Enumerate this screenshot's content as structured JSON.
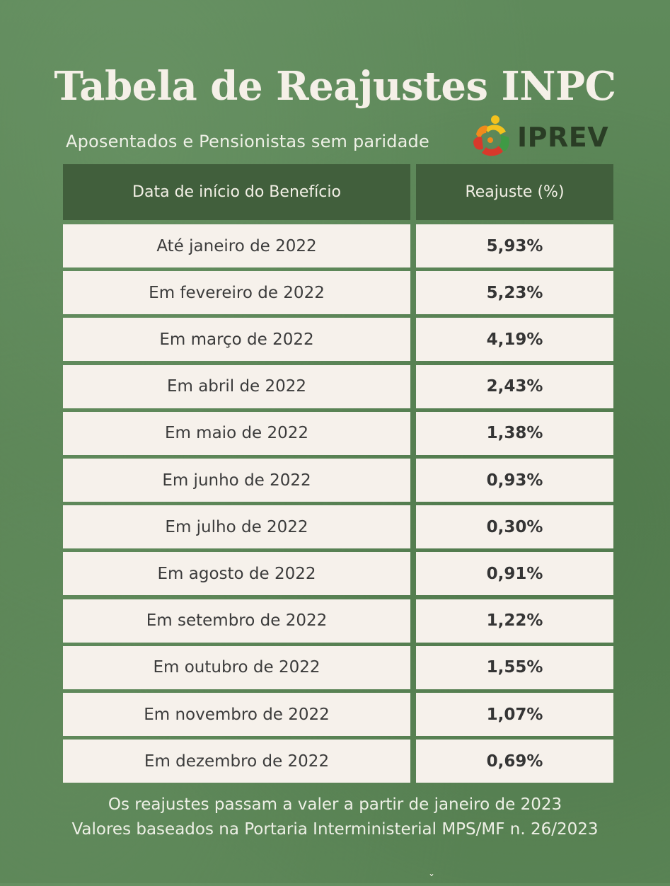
{
  "title": "Tabela de Reajustes INPC",
  "subtitle": "Aposentados e Pensionistas sem paridade",
  "logo": {
    "text": "IPREV",
    "icon": "iprev-logo-mark-icon",
    "colors": {
      "red": "#d8392b",
      "orange": "#f08a1c",
      "yellow": "#f4c21d",
      "green": "#3f9a45",
      "text": "#2a3d25"
    }
  },
  "table": {
    "headers": [
      "Data de início do Benefício",
      "Reajuste (%)"
    ],
    "rows": [
      {
        "period": "Até janeiro de 2022",
        "rate": "5,93%"
      },
      {
        "period": "Em fevereiro de 2022",
        "rate": "5,23%"
      },
      {
        "period": "Em março de 2022",
        "rate": "4,19%"
      },
      {
        "period": "Em abril de 2022",
        "rate": "2,43%"
      },
      {
        "period": "Em maio de 2022",
        "rate": "1,38%"
      },
      {
        "period": "Em junho de 2022",
        "rate": "0,93%"
      },
      {
        "period": "Em julho de 2022",
        "rate": "0,30%"
      },
      {
        "period": "Em agosto de 2022",
        "rate": "0,91%"
      },
      {
        "period": "Em setembro de 2022",
        "rate": "1,22%"
      },
      {
        "period": "Em outubro de 2022",
        "rate": "1,55%"
      },
      {
        "period": "Em novembro de 2022",
        "rate": "1,07%"
      },
      {
        "period": "Em dezembro de 2022",
        "rate": "0,69%"
      }
    ]
  },
  "footer": {
    "line1": "Os reajustes passam a valer a partir de janeiro de 2023",
    "line2": "Valores baseados na Portaria Interministerial MPS/MF n. 26/2023"
  },
  "bottom_mark": "ˇ",
  "colors": {
    "background": "#5b8457",
    "header_bg": "#415f3c",
    "cell_bg": "#f6f1eb",
    "text_light": "#f5f0e8",
    "text_dark": "#3b3b3b"
  }
}
